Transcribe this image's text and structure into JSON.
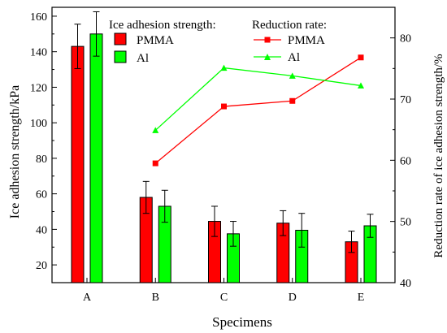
{
  "chart_data": {
    "type": "bar",
    "categories": [
      "A",
      "B",
      "C",
      "D",
      "E"
    ],
    "xlabel": "Specimens",
    "ylabel": "Ice adhesion strength/kPa",
    "ylabel_right": "Reduction rate of ice adhesion strength/%",
    "ylim": [
      10,
      165
    ],
    "yticks": [
      20,
      40,
      60,
      80,
      100,
      120,
      140,
      160
    ],
    "ylim_right": [
      40,
      85
    ],
    "yticks_right": [
      40,
      50,
      60,
      70,
      80
    ],
    "grid": false,
    "bar_legend_title": "Ice adhesion strength:",
    "line_legend_title": "Reduction rate:",
    "bar_series": [
      {
        "name": "PMMA",
        "color": "#ff0000",
        "values": [
          143,
          58,
          44.5,
          43.5,
          33
        ],
        "errors": [
          12.5,
          9,
          8.5,
          7,
          6
        ]
      },
      {
        "name": "Al",
        "color": "#00ff00",
        "values": [
          150,
          53,
          37.5,
          39.5,
          42
        ],
        "errors": [
          12.5,
          9,
          7,
          9.5,
          6.5
        ]
      }
    ],
    "line_series": [
      {
        "name": "PMMA",
        "color": "#ff0000",
        "marker": "square",
        "x": [
          "B",
          "C",
          "D",
          "E"
        ],
        "values": [
          59.5,
          68.8,
          69.7,
          76.8
        ]
      },
      {
        "name": "Al",
        "color": "#00ff00",
        "marker": "triangle",
        "x": [
          "B",
          "C",
          "D",
          "E"
        ],
        "values": [
          64.9,
          75.1,
          73.8,
          72.2
        ]
      }
    ]
  }
}
